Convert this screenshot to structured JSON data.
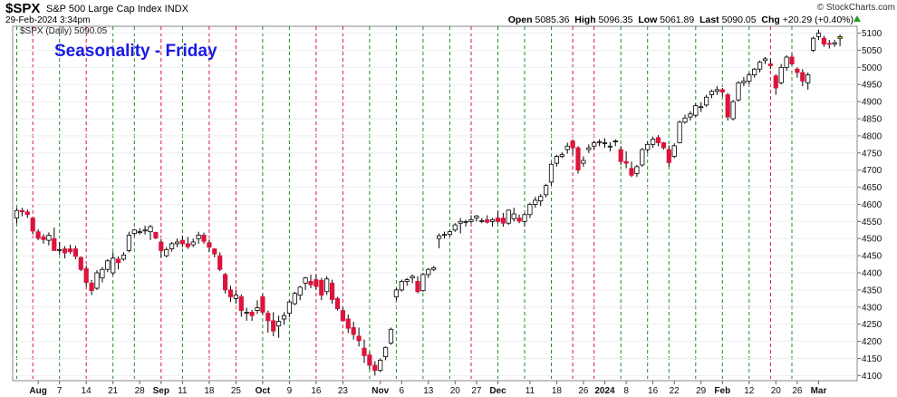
{
  "header": {
    "symbol": "$SPX",
    "description": "S&P 500 Large Cap Index  INDX",
    "datetime": "29-Feb-2024 3:34pm",
    "open_label": "Open",
    "open": "5085.36",
    "high_label": "High",
    "high": "5096.35",
    "low_label": "Low",
    "low": "5061.89",
    "last_label": "Last",
    "last": "5090.05",
    "chg_label": "Chg",
    "chg": "+20.29 (+0.40%)",
    "brand": "© StockCharts.com",
    "series_label": "$SPX (Daily) 5090.05"
  },
  "annotation": "Seasonality - Friday",
  "colors": {
    "up": "#ffffff",
    "down": "#dc143c",
    "outline": "#000000",
    "friday_up_line": "#228b22",
    "friday_down_line": "#dc143c"
  },
  "chart_data": {
    "type": "candlestick",
    "title": "Seasonality - Friday",
    "y_ticks": [
      4100,
      4150,
      4200,
      4250,
      4300,
      4350,
      4400,
      4450,
      4500,
      4550,
      4600,
      4650,
      4700,
      4750,
      4800,
      4850,
      4900,
      4950,
      5000,
      5050,
      5100
    ],
    "ylim": [
      4085,
      5120
    ],
    "x_tick_labels": [
      {
        "i": 4,
        "label": "Aug",
        "bold": true
      },
      {
        "i": 8,
        "label": "7"
      },
      {
        "i": 13,
        "label": "14"
      },
      {
        "i": 18,
        "label": "21"
      },
      {
        "i": 23,
        "label": "28"
      },
      {
        "i": 27,
        "label": "Sep",
        "bold": true
      },
      {
        "i": 31,
        "label": "11"
      },
      {
        "i": 36,
        "label": "18"
      },
      {
        "i": 41,
        "label": "25"
      },
      {
        "i": 46,
        "label": "Oct",
        "bold": true
      },
      {
        "i": 51,
        "label": "9"
      },
      {
        "i": 56,
        "label": "16"
      },
      {
        "i": 61,
        "label": "23"
      },
      {
        "i": 68,
        "label": "Nov",
        "bold": true
      },
      {
        "i": 72,
        "label": "6"
      },
      {
        "i": 77,
        "label": "13"
      },
      {
        "i": 82,
        "label": "20"
      },
      {
        "i": 86,
        "label": "27"
      },
      {
        "i": 90,
        "label": "Dec",
        "bold": true
      },
      {
        "i": 96,
        "label": "11"
      },
      {
        "i": 101,
        "label": "18"
      },
      {
        "i": 106,
        "label": "26"
      },
      {
        "i": 110,
        "label": "2024",
        "bold": true
      },
      {
        "i": 114,
        "label": "8"
      },
      {
        "i": 119,
        "label": "16"
      },
      {
        "i": 123,
        "label": "22"
      },
      {
        "i": 128,
        "label": "29"
      },
      {
        "i": 132,
        "label": "Feb",
        "bold": true
      },
      {
        "i": 137,
        "label": "12"
      },
      {
        "i": 142,
        "label": "20"
      },
      {
        "i": 146,
        "label": "26"
      },
      {
        "i": 150,
        "label": "Mar",
        "bold": true
      }
    ],
    "fridays": [
      {
        "i": 0,
        "dir": "up"
      },
      {
        "i": 3,
        "dir": "down"
      },
      {
        "i": 8,
        "dir": "up"
      },
      {
        "i": 13,
        "dir": "down"
      },
      {
        "i": 18,
        "dir": "up"
      },
      {
        "i": 22,
        "dir": "up"
      },
      {
        "i": 27,
        "dir": "down"
      },
      {
        "i": 31,
        "dir": "up"
      },
      {
        "i": 36,
        "dir": "down"
      },
      {
        "i": 41,
        "dir": "down"
      },
      {
        "i": 46,
        "dir": "up"
      },
      {
        "i": 51,
        "dir": "up"
      },
      {
        "i": 56,
        "dir": "down"
      },
      {
        "i": 61,
        "dir": "down"
      },
      {
        "i": 66,
        "dir": "up"
      },
      {
        "i": 71,
        "dir": "up"
      },
      {
        "i": 76,
        "dir": "up"
      },
      {
        "i": 81,
        "dir": "up"
      },
      {
        "i": 85,
        "dir": "down"
      },
      {
        "i": 90,
        "dir": "up"
      },
      {
        "i": 95,
        "dir": "up"
      },
      {
        "i": 100,
        "dir": "up"
      },
      {
        "i": 104,
        "dir": "down"
      },
      {
        "i": 108,
        "dir": "down"
      },
      {
        "i": 113,
        "dir": "up"
      },
      {
        "i": 118,
        "dir": "up"
      },
      {
        "i": 122,
        "dir": "up"
      },
      {
        "i": 127,
        "dir": "up"
      },
      {
        "i": 132,
        "dir": "up"
      },
      {
        "i": 137,
        "dir": "up"
      },
      {
        "i": 141,
        "dir": "down"
      },
      {
        "i": 145,
        "dir": "up"
      }
    ],
    "candles": [
      [
        4560,
        4590,
        4545,
        4582
      ],
      [
        4582,
        4590,
        4565,
        4578
      ],
      [
        4578,
        4585,
        4560,
        4570
      ],
      [
        4560,
        4563,
        4512,
        4522
      ],
      [
        4520,
        4527,
        4495,
        4501
      ],
      [
        4505,
        4513,
        4485,
        4497
      ],
      [
        4495,
        4518,
        4480,
        4510
      ],
      [
        4500,
        4532,
        4465,
        4465
      ],
      [
        4468,
        4490,
        4452,
        4468
      ],
      [
        4470,
        4478,
        4442,
        4458
      ],
      [
        4470,
        4482,
        4455,
        4462
      ],
      [
        4470,
        4479,
        4440,
        4448
      ],
      [
        4445,
        4448,
        4405,
        4410
      ],
      [
        4412,
        4420,
        4360,
        4372
      ],
      [
        4370,
        4379,
        4335,
        4348
      ],
      [
        4355,
        4408,
        4350,
        4400
      ],
      [
        4385,
        4417,
        4372,
        4410
      ],
      [
        4410,
        4440,
        4402,
        4435
      ],
      [
        4400,
        4460,
        4393,
        4443
      ],
      [
        4440,
        4448,
        4410,
        4430
      ],
      [
        4440,
        4460,
        4435,
        4452
      ],
      [
        4465,
        4520,
        4460,
        4510
      ],
      [
        4515,
        4528,
        4508,
        4525
      ],
      [
        4520,
        4530,
        4512,
        4520
      ],
      [
        4525,
        4538,
        4512,
        4525
      ],
      [
        4520,
        4540,
        4496,
        4535
      ],
      [
        4518,
        4520,
        4498,
        4502
      ],
      [
        4490,
        4498,
        4445,
        4465
      ],
      [
        4450,
        4475,
        4445,
        4468
      ],
      [
        4470,
        4490,
        4462,
        4485
      ],
      [
        4485,
        4500,
        4475,
        4490
      ],
      [
        4495,
        4508,
        4475,
        4485
      ],
      [
        4485,
        4505,
        4470,
        4476
      ],
      [
        4482,
        4500,
        4475,
        4490
      ],
      [
        4500,
        4520,
        4485,
        4510
      ],
      [
        4510,
        4517,
        4485,
        4492
      ],
      [
        4488,
        4497,
        4460,
        4475
      ],
      [
        4470,
        4472,
        4445,
        4455
      ],
      [
        4450,
        4460,
        4405,
        4410
      ],
      [
        4395,
        4400,
        4340,
        4350
      ],
      [
        4350,
        4362,
        4315,
        4330
      ],
      [
        4325,
        4350,
        4310,
        4335
      ],
      [
        4330,
        4337,
        4272,
        4290
      ],
      [
        4285,
        4298,
        4260,
        4285
      ],
      [
        4285,
        4292,
        4260,
        4275
      ],
      [
        4290,
        4320,
        4280,
        4298
      ],
      [
        4330,
        4338,
        4278,
        4285
      ],
      [
        4282,
        4290,
        4225,
        4260
      ],
      [
        4260,
        4285,
        4215,
        4230
      ],
      [
        4245,
        4275,
        4210,
        4258
      ],
      [
        4265,
        4285,
        4248,
        4275
      ],
      [
        4282,
        4320,
        4270,
        4315
      ],
      [
        4310,
        4345,
        4305,
        4340
      ],
      [
        4335,
        4362,
        4320,
        4358
      ],
      [
        4370,
        4388,
        4350,
        4385
      ],
      [
        4375,
        4395,
        4355,
        4365
      ],
      [
        4380,
        4395,
        4350,
        4360
      ],
      [
        4378,
        4385,
        4320,
        4335
      ],
      [
        4345,
        4390,
        4335,
        4382
      ],
      [
        4370,
        4380,
        4310,
        4322
      ],
      [
        4325,
        4330,
        4290,
        4295
      ],
      [
        4290,
        4300,
        4258,
        4260
      ],
      [
        4265,
        4278,
        4224,
        4238
      ],
      [
        4240,
        4257,
        4205,
        4220
      ],
      [
        4215,
        4240,
        4185,
        4202
      ],
      [
        4180,
        4205,
        4137,
        4158
      ],
      [
        4160,
        4168,
        4118,
        4130
      ],
      [
        4130,
        4142,
        4100,
        4115
      ],
      [
        4115,
        4150,
        4110,
        4145
      ],
      [
        4155,
        4185,
        4145,
        4182
      ],
      [
        4195,
        4240,
        4190,
        4235
      ],
      [
        4330,
        4355,
        4320,
        4350
      ],
      [
        4350,
        4380,
        4345,
        4375
      ],
      [
        4375,
        4385,
        4362,
        4380
      ],
      [
        4385,
        4395,
        4370,
        4390
      ],
      [
        4375,
        4390,
        4340,
        4345
      ],
      [
        4348,
        4400,
        4345,
        4395
      ],
      [
        4395,
        4414,
        4385,
        4410
      ],
      [
        4410,
        4420,
        4405,
        4415
      ],
      [
        4500,
        4515,
        4472,
        4508
      ],
      [
        4510,
        4520,
        4500,
        4512
      ],
      [
        4512,
        4525,
        4505,
        4520
      ],
      [
        4525,
        4545,
        4520,
        4540
      ],
      [
        4545,
        4560,
        4515,
        4550
      ],
      [
        4548,
        4555,
        4535,
        4550
      ],
      [
        4550,
        4568,
        4545,
        4555
      ],
      [
        4560,
        4569,
        4550,
        4566
      ],
      [
        4552,
        4560,
        4545,
        4552
      ],
      [
        4555,
        4568,
        4544,
        4548
      ],
      [
        4550,
        4560,
        4535,
        4555
      ],
      [
        4560,
        4580,
        4545,
        4550
      ],
      [
        4560,
        4575,
        4535,
        4545
      ],
      [
        4545,
        4585,
        4540,
        4583
      ],
      [
        4558,
        4590,
        4550,
        4572
      ],
      [
        4560,
        4570,
        4545,
        4551
      ],
      [
        4550,
        4575,
        4535,
        4570
      ],
      [
        4570,
        4605,
        4560,
        4600
      ],
      [
        4600,
        4622,
        4590,
        4612
      ],
      [
        4610,
        4630,
        4595,
        4623
      ],
      [
        4628,
        4660,
        4620,
        4655
      ],
      [
        4665,
        4720,
        4655,
        4717
      ],
      [
        4720,
        4745,
        4710,
        4740
      ],
      [
        4740,
        4752,
        4735,
        4745
      ],
      [
        4760,
        4780,
        4748,
        4770
      ],
      [
        4785,
        4790,
        4745,
        4765
      ],
      [
        4765,
        4770,
        4690,
        4700
      ],
      [
        4720,
        4740,
        4710,
        4728
      ],
      [
        4760,
        4775,
        4750,
        4765
      ],
      [
        4770,
        4785,
        4760,
        4780
      ],
      [
        4782,
        4790,
        4770,
        4783
      ],
      [
        4778,
        4793,
        4765,
        4780
      ],
      [
        4770,
        4781,
        4755,
        4770
      ],
      [
        4785,
        4790,
        4770,
        4785
      ],
      [
        4760,
        4770,
        4715,
        4725
      ],
      [
        4725,
        4755,
        4705,
        4720
      ],
      [
        4705,
        4725,
        4680,
        4685
      ],
      [
        4690,
        4715,
        4680,
        4710
      ],
      [
        4715,
        4765,
        4710,
        4760
      ],
      [
        4760,
        4783,
        4750,
        4775
      ],
      [
        4775,
        4798,
        4765,
        4790
      ],
      [
        4795,
        4802,
        4770,
        4780
      ],
      [
        4780,
        4782,
        4760,
        4765
      ],
      [
        4760,
        4772,
        4710,
        4722
      ],
      [
        4740,
        4778,
        4735,
        4771
      ],
      [
        4780,
        4845,
        4778,
        4840
      ],
      [
        4840,
        4862,
        4835,
        4852
      ],
      [
        4855,
        4872,
        4845,
        4864
      ],
      [
        4860,
        4895,
        4855,
        4888
      ],
      [
        4885,
        4898,
        4870,
        4885
      ],
      [
        4890,
        4920,
        4885,
        4913
      ],
      [
        4920,
        4935,
        4910,
        4930
      ],
      [
        4930,
        4945,
        4920,
        4935
      ],
      [
        4935,
        4940,
        4915,
        4928
      ],
      [
        4920,
        4925,
        4845,
        4855
      ],
      [
        4850,
        4905,
        4845,
        4900
      ],
      [
        4905,
        4960,
        4900,
        4955
      ],
      [
        4955,
        4972,
        4945,
        4960
      ],
      [
        4960,
        4985,
        4950,
        4978
      ],
      [
        4978,
        4998,
        4970,
        4995
      ],
      [
        4995,
        5020,
        4985,
        5015
      ],
      [
        5020,
        5030,
        5010,
        5025
      ],
      [
        5010,
        5025,
        4995,
        5005
      ],
      [
        4975,
        4980,
        4920,
        4940
      ],
      [
        4955,
        5010,
        4950,
        5000
      ],
      [
        5000,
        5035,
        4990,
        5030
      ],
      [
        5030,
        5040,
        5005,
        5010
      ],
      [
        4995,
        5000,
        4970,
        4985
      ],
      [
        4985,
        4995,
        4945,
        4960
      ],
      [
        4955,
        4985,
        4935,
        4978
      ],
      [
        5050,
        5090,
        5045,
        5085
      ],
      [
        5090,
        5110,
        5080,
        5100
      ],
      [
        5085,
        5092,
        5060,
        5068
      ],
      [
        5070,
        5080,
        5055,
        5068
      ],
      [
        5068,
        5080,
        5060,
        5072
      ],
      [
        5085,
        5096,
        5062,
        5090
      ]
    ]
  }
}
